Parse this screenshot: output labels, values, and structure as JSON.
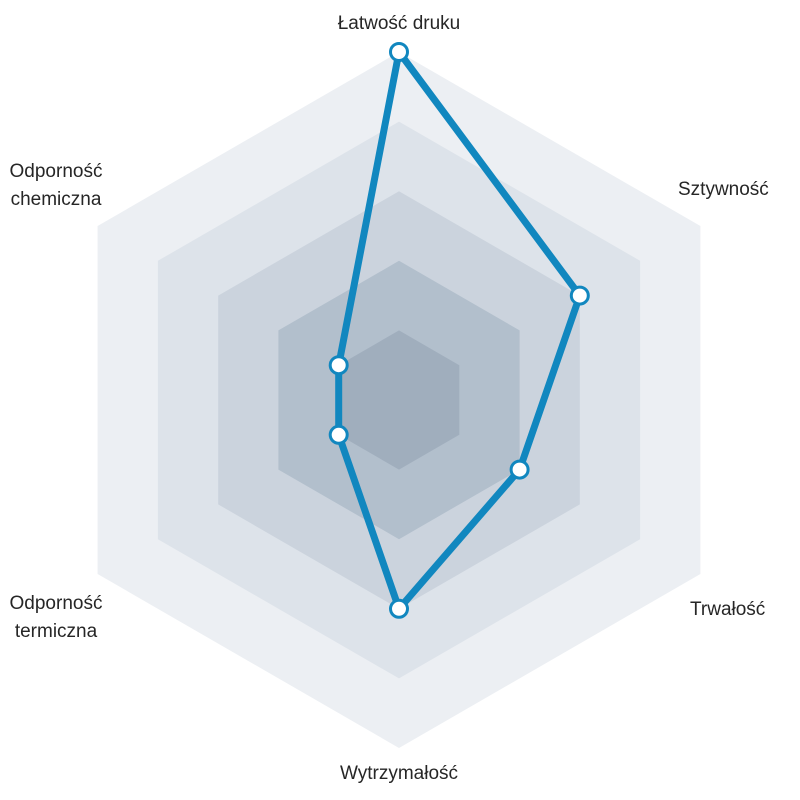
{
  "chart_data": {
    "type": "radar",
    "title": "",
    "axes": [
      "Łatwość druku",
      "Sztywność",
      "Trwałość",
      "Wytrzymałość",
      "Odporność termiczna",
      "Odporność chemiczna"
    ],
    "values": [
      5,
      3,
      2,
      3,
      1,
      1
    ],
    "scale_min": 0,
    "scale_max": 5,
    "ring_count": 5,
    "grid_shape": "hexagon",
    "legend": "none",
    "ring_colors_outer_to_inner": [
      "#eceff3",
      "#dde3ea",
      "#cbd3dd",
      "#b2bfcc",
      "#a0aebd"
    ],
    "series_color": "#1187bf",
    "point_fill_color": "#ffffff",
    "text_color": "#262626",
    "background_color": "#ffffff"
  }
}
